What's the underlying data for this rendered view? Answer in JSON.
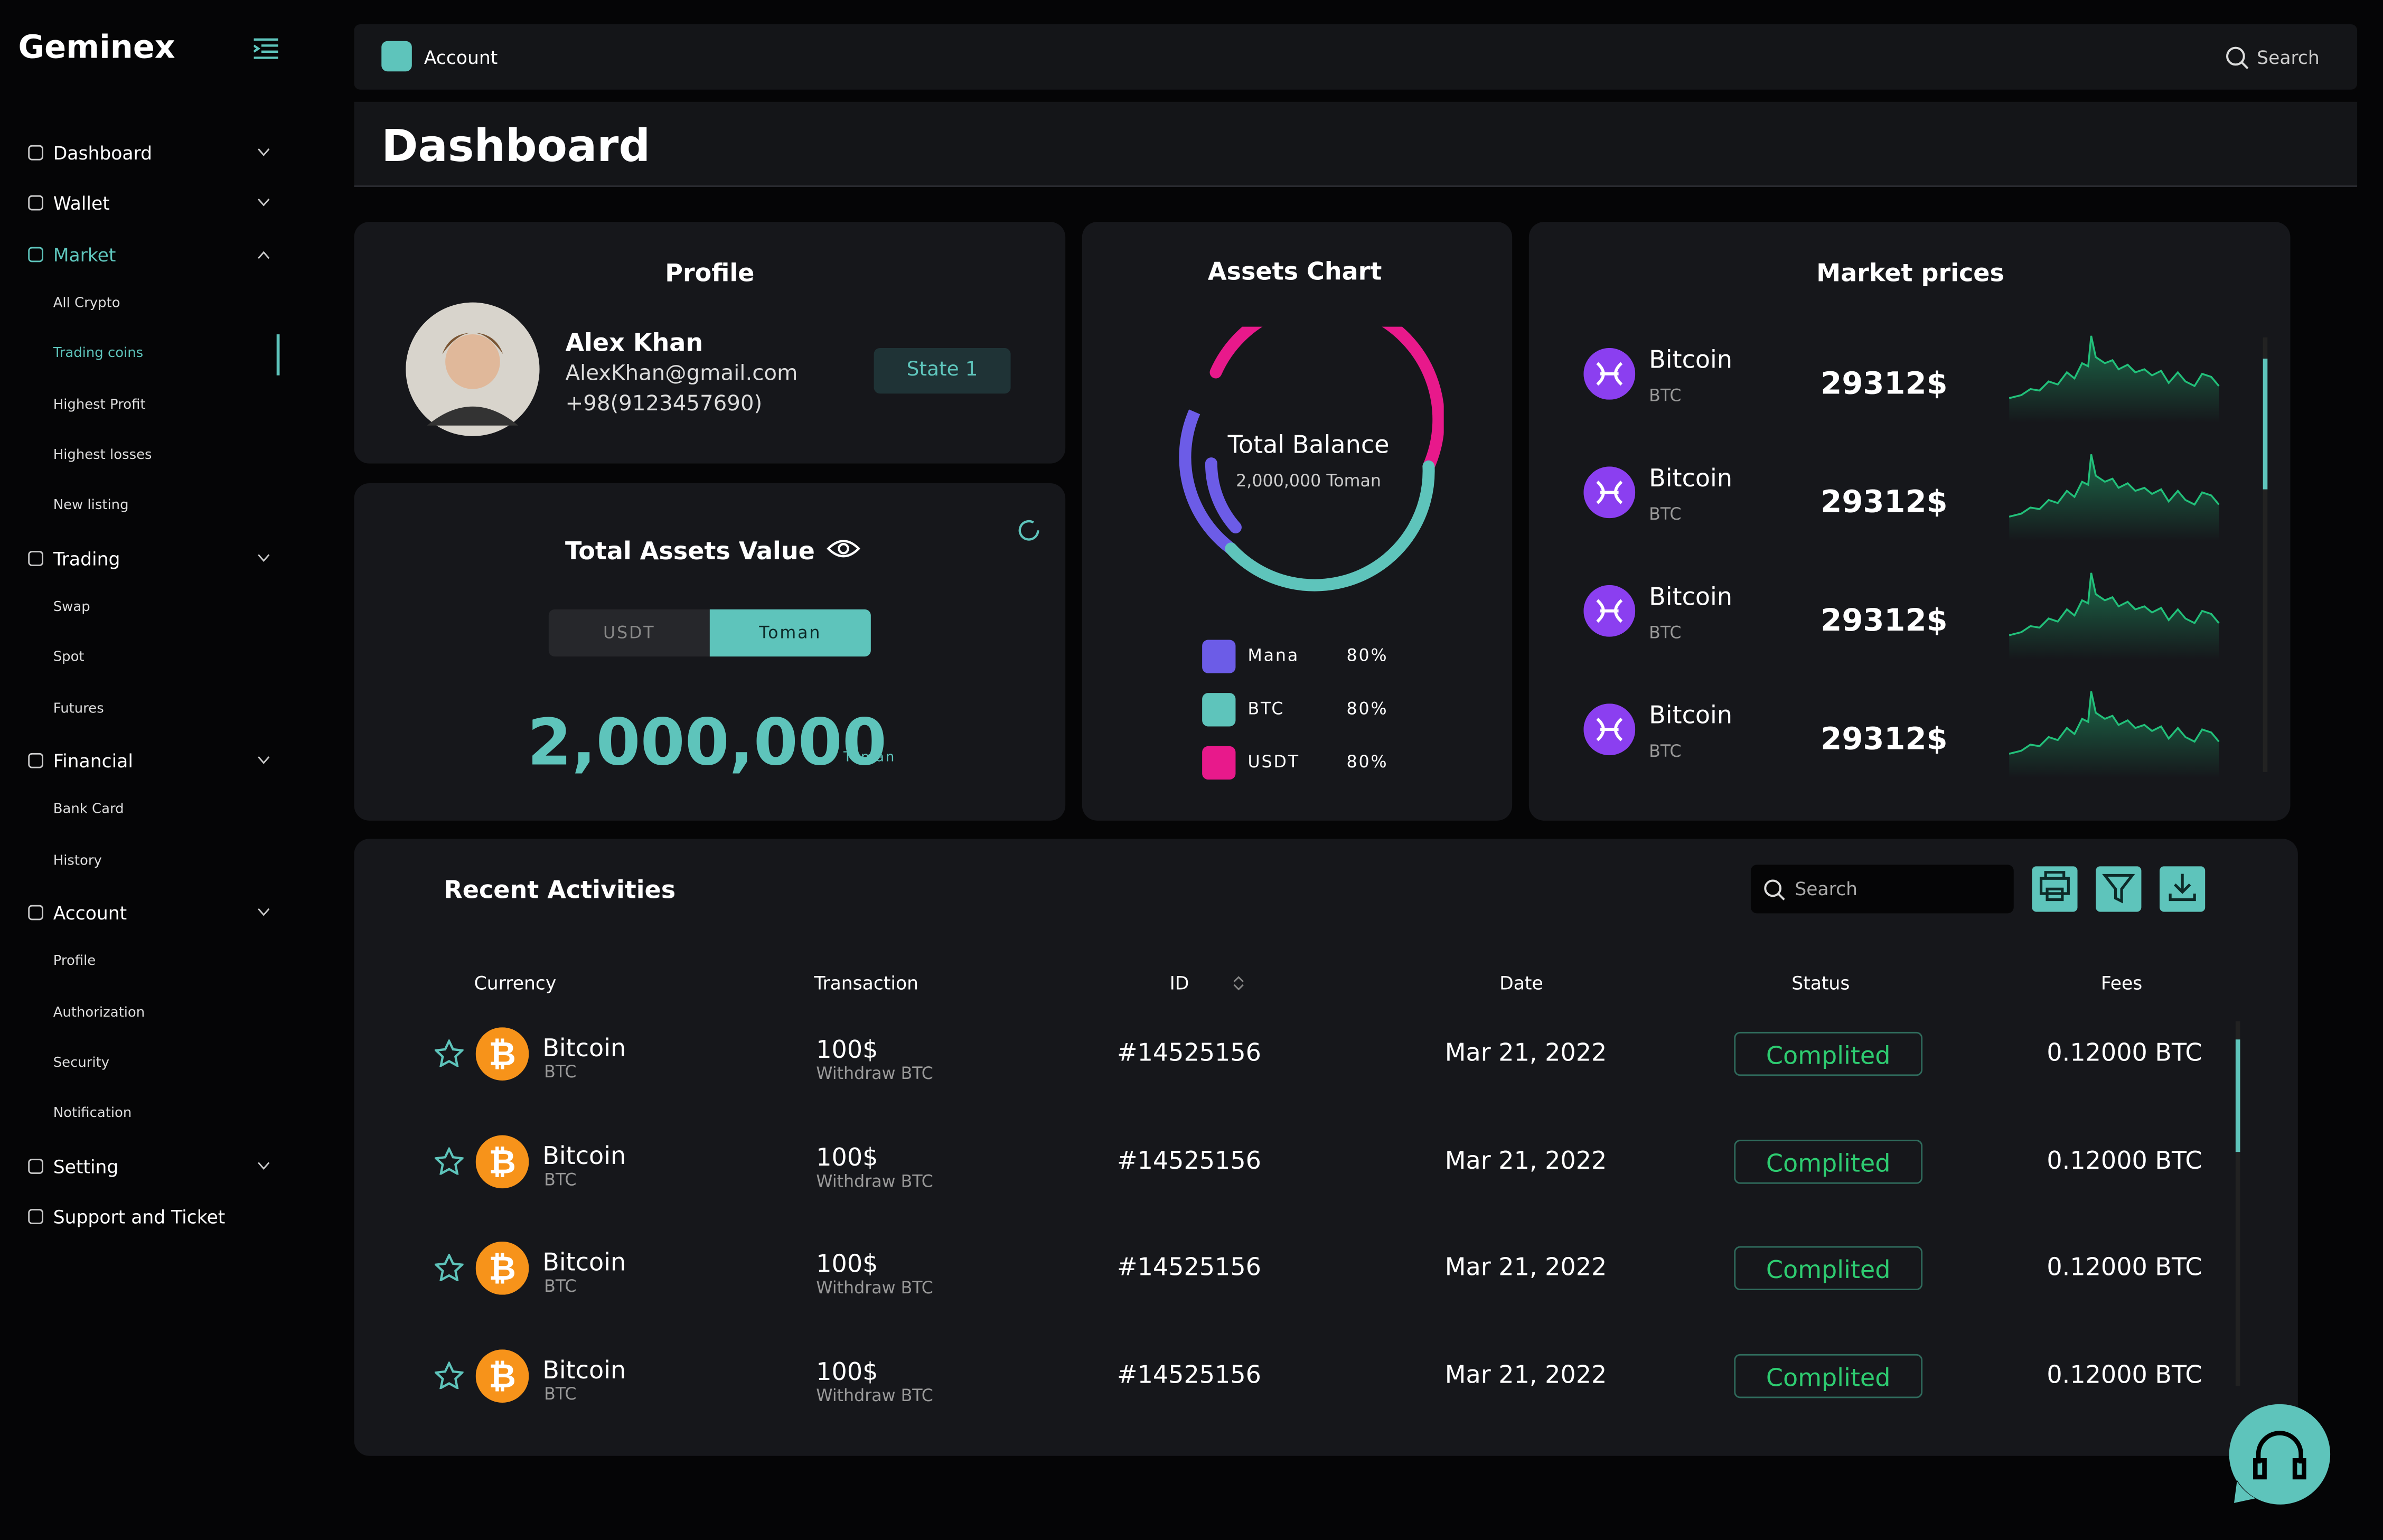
{
  "sidebar": {
    "brand": "Geminex",
    "menu": [
      {
        "label": "Dashboard"
      },
      {
        "label": "Wallet"
      },
      {
        "label": "Market",
        "items": [
          "All Crypto",
          "Trading coins",
          "Highest Profit",
          "Highest losses",
          "New listing"
        ]
      },
      {
        "label": "Trading",
        "items": [
          "Swap",
          "Spot",
          "Futures"
        ]
      },
      {
        "label": "Financial",
        "items": [
          "Bank Card",
          "History"
        ]
      },
      {
        "label": "Account",
        "items": [
          "Profile",
          "Authorization",
          "Security",
          "Notification"
        ]
      },
      {
        "label": "Setting"
      },
      {
        "label": "Support and Ticket"
      }
    ]
  },
  "topbar": {
    "breadcrumb": "Account",
    "search": "Search"
  },
  "page_title": "Dashboard",
  "profile": {
    "title": "Profile",
    "name": "Alex Khan",
    "email": "AlexKhan@gmail.com",
    "phone": "+98(9123457690)",
    "state": "State 1"
  },
  "total_assets": {
    "title": "Total Assets Value",
    "tabs": [
      "USDT",
      "Toman"
    ],
    "value": "2,000,000",
    "unit": "Toman"
  },
  "assets_chart": {
    "title": "Assets Chart",
    "center_title": "Total Balance",
    "center_value": "2,000,000 Toman",
    "legend": [
      {
        "name": "Mana",
        "percent": "80%",
        "color": "#6c5ce7"
      },
      {
        "name": "BTC",
        "percent": "80%",
        "color": "#5ec4bb"
      },
      {
        "name": "USDT",
        "percent": "80%",
        "color": "#e8198b"
      }
    ]
  },
  "market_prices": {
    "title": "Market prices",
    "rows": [
      {
        "name": "Bitcoin",
        "symbol": "BTC",
        "price": "29312$"
      },
      {
        "name": "Bitcoin",
        "symbol": "BTC",
        "price": "29312$"
      },
      {
        "name": "Bitcoin",
        "symbol": "BTC",
        "price": "29312$"
      },
      {
        "name": "Bitcoin",
        "symbol": "BTC",
        "price": "29312$"
      }
    ]
  },
  "recent_activities": {
    "title": "Recent Activities",
    "search": "Search",
    "columns": [
      "Currency",
      "Transaction",
      "ID",
      "Date",
      "Status",
      "Fees"
    ],
    "rows": [
      {
        "name": "Bitcoin",
        "symbol": "BTC",
        "amount": "100$",
        "type": "Withdraw BTC",
        "id": "#14525156",
        "date": "Mar 21, 2022",
        "status": "Complited",
        "fees": "0.12000 BTC"
      },
      {
        "name": "Bitcoin",
        "symbol": "BTC",
        "amount": "100$",
        "type": "Withdraw BTC",
        "id": "#14525156",
        "date": "Mar 21, 2022",
        "status": "Complited",
        "fees": "0.12000 BTC"
      },
      {
        "name": "Bitcoin",
        "symbol": "BTC",
        "amount": "100$",
        "type": "Withdraw BTC",
        "id": "#14525156",
        "date": "Mar 21, 2022",
        "status": "Complited",
        "fees": "0.12000 BTC"
      },
      {
        "name": "Bitcoin",
        "symbol": "BTC",
        "amount": "100$",
        "type": "Withdraw BTC",
        "id": "#14525156",
        "date": "Mar 21, 2022",
        "status": "Complited",
        "fees": "0.12000 BTC"
      }
    ]
  }
}
